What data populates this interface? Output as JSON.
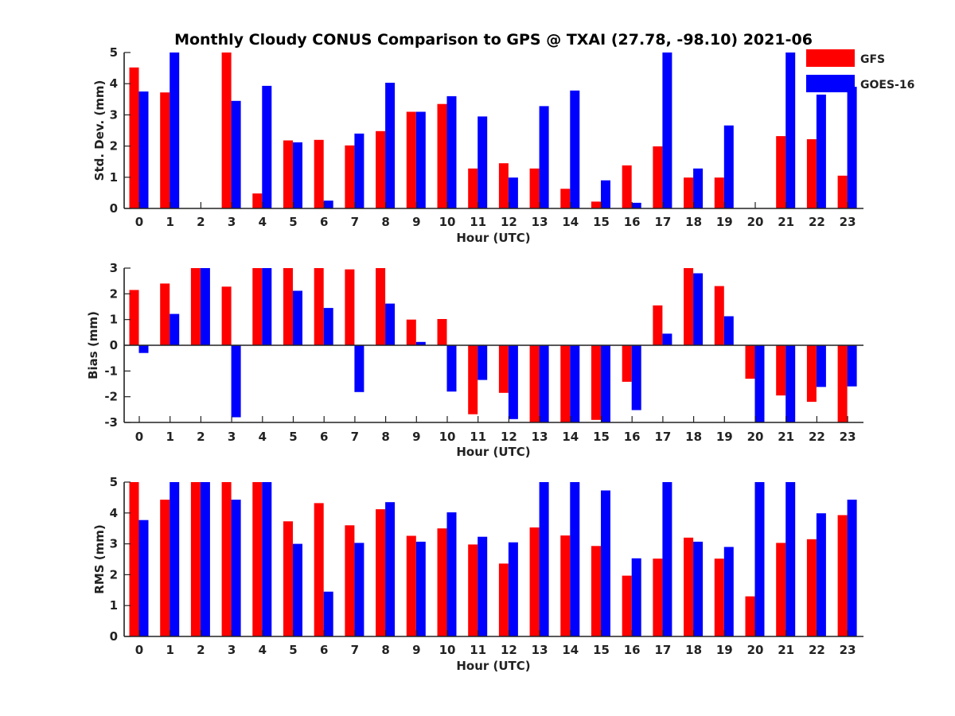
{
  "chart_data": [
    {
      "type": "bar",
      "title": "Monthly Cloudy CONUS Comparison to GPS @ TXAI (27.78, -98.10) 2021-06",
      "xlabel": "Hour (UTC)",
      "ylabel": "Std. Dev. (mm)",
      "ylim": [
        0,
        5
      ],
      "yticks": [
        "0",
        "1",
        "2",
        "3",
        "4",
        "5"
      ],
      "categories": [
        "0",
        "1",
        "2",
        "3",
        "4",
        "5",
        "6",
        "7",
        "8",
        "9",
        "10",
        "11",
        "12",
        "13",
        "14",
        "15",
        "16",
        "17",
        "18",
        "19",
        "20",
        "21",
        "22",
        "23"
      ],
      "series": [
        {
          "name": "GFS",
          "color": "#ff0000",
          "values": [
            4.52,
            3.72,
            0,
            5.0,
            0.48,
            2.18,
            2.2,
            2.02,
            2.48,
            3.1,
            3.35,
            1.28,
            1.45,
            1.28,
            0.63,
            0.22,
            1.38,
            1.99,
            0.99,
            0.99,
            0,
            2.32,
            2.22,
            1.05
          ]
        },
        {
          "name": "GOES-16",
          "color": "#0000ff",
          "values": [
            3.75,
            5.0,
            0,
            3.45,
            3.93,
            2.12,
            0.25,
            2.4,
            4.03,
            3.1,
            3.6,
            2.95,
            0.99,
            3.28,
            3.78,
            0.9,
            0.18,
            5.0,
            1.28,
            2.66,
            0,
            5.0,
            3.65,
            3.9
          ]
        }
      ],
      "legend": {
        "position": "top-right",
        "entries": [
          "GFS",
          "GOES-16"
        ]
      }
    },
    {
      "type": "bar",
      "xlabel": "Hour (UTC)",
      "ylabel": "Bias (mm)",
      "ylim": [
        -3,
        3
      ],
      "yticks": [
        "-3",
        "-2",
        "-1",
        "0",
        "1",
        "2",
        "3"
      ],
      "categories": [
        "0",
        "1",
        "2",
        "3",
        "4",
        "5",
        "6",
        "7",
        "8",
        "9",
        "10",
        "11",
        "12",
        "13",
        "14",
        "15",
        "16",
        "17",
        "18",
        "19",
        "20",
        "21",
        "22",
        "23"
      ],
      "series": [
        {
          "name": "GFS",
          "color": "#ff0000",
          "values": [
            2.15,
            2.4,
            3.0,
            2.28,
            3.0,
            3.0,
            3.0,
            2.95,
            3.0,
            1.0,
            1.02,
            -2.68,
            -1.85,
            -3.0,
            -3.0,
            -2.9,
            -1.42,
            1.55,
            3.0,
            2.3,
            -1.3,
            -1.95,
            -2.2,
            -3.0
          ]
        },
        {
          "name": "GOES-16",
          "color": "#0000ff",
          "values": [
            -0.3,
            1.22,
            3.0,
            -2.8,
            3.0,
            2.12,
            1.45,
            -1.82,
            1.62,
            0.13,
            -1.8,
            -1.35,
            -2.87,
            -3.0,
            -3.0,
            -3.0,
            -2.52,
            0.45,
            2.8,
            1.13,
            -3.0,
            -3.0,
            -1.62,
            -1.6
          ]
        }
      ]
    },
    {
      "type": "bar",
      "xlabel": "Hour (UTC)",
      "ylabel": "RMS (mm)",
      "ylim": [
        0,
        5
      ],
      "yticks": [
        "0",
        "1",
        "2",
        "3",
        "4",
        "5"
      ],
      "categories": [
        "0",
        "1",
        "2",
        "3",
        "4",
        "5",
        "6",
        "7",
        "8",
        "9",
        "10",
        "11",
        "12",
        "13",
        "14",
        "15",
        "16",
        "17",
        "18",
        "19",
        "20",
        "21",
        "22",
        "23"
      ],
      "series": [
        {
          "name": "GFS",
          "color": "#ff0000",
          "values": [
            5.0,
            4.43,
            5.0,
            5.0,
            5.0,
            3.73,
            4.32,
            3.6,
            4.12,
            3.26,
            3.5,
            2.98,
            2.36,
            3.53,
            3.27,
            2.93,
            1.97,
            2.52,
            3.2,
            2.52,
            1.3,
            3.03,
            3.15,
            3.93
          ]
        },
        {
          "name": "GOES-16",
          "color": "#0000ff",
          "values": [
            3.77,
            5.0,
            5.0,
            4.43,
            5.0,
            3.0,
            1.45,
            3.03,
            4.35,
            3.07,
            4.02,
            3.23,
            3.05,
            5.0,
            5.0,
            4.73,
            2.53,
            5.0,
            3.07,
            2.9,
            5.0,
            5.0,
            3.99,
            4.43
          ]
        }
      ]
    }
  ]
}
